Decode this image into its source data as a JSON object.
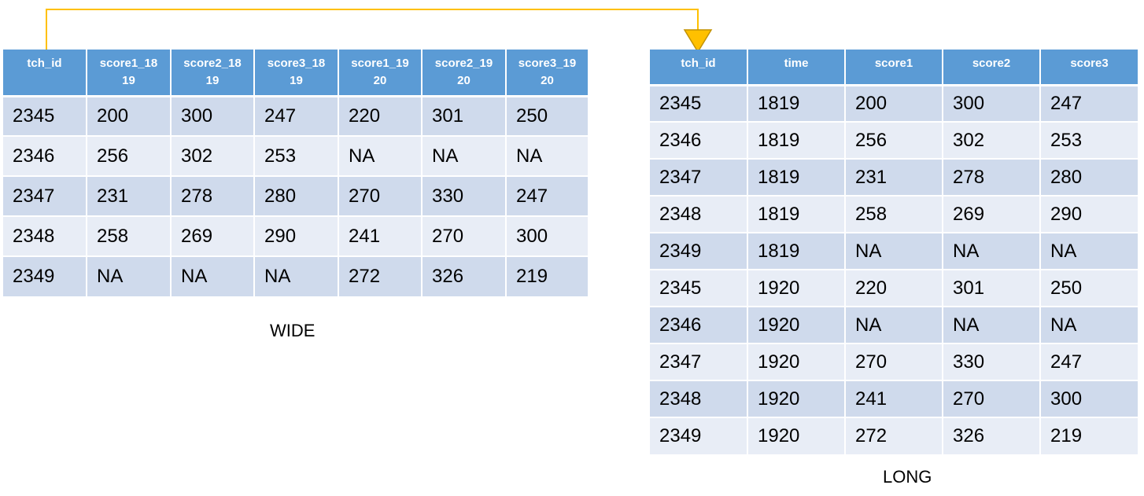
{
  "wide": {
    "caption": "WIDE",
    "headers": [
      [
        "tch_id"
      ],
      [
        "score1_18",
        "19"
      ],
      [
        "score2_18",
        "19"
      ],
      [
        "score3_18",
        "19"
      ],
      [
        "score1_19",
        "20"
      ],
      [
        "score2_19",
        "20"
      ],
      [
        "score3_19",
        "20"
      ]
    ],
    "rows": [
      [
        "2345",
        "200",
        "300",
        "247",
        "220",
        "301",
        "250"
      ],
      [
        "2346",
        "256",
        "302",
        "253",
        "NA",
        "NA",
        "NA"
      ],
      [
        "2347",
        "231",
        "278",
        "280",
        "270",
        "330",
        "247"
      ],
      [
        "2348",
        "258",
        "269",
        "290",
        "241",
        "270",
        "300"
      ],
      [
        "2349",
        "NA",
        "NA",
        "NA",
        "272",
        "326",
        "219"
      ]
    ]
  },
  "long": {
    "caption": "LONG",
    "headers": [
      "tch_id",
      "time",
      "score1",
      "score2",
      "score3"
    ],
    "rows": [
      [
        "2345",
        "1819",
        "200",
        "300",
        "247"
      ],
      [
        "2346",
        "1819",
        "256",
        "302",
        "253"
      ],
      [
        "2347",
        "1819",
        "231",
        "278",
        "280"
      ],
      [
        "2348",
        "1819",
        "258",
        "269",
        "290"
      ],
      [
        "2349",
        "1819",
        "NA",
        "NA",
        "NA"
      ],
      [
        "2345",
        "1920",
        "220",
        "301",
        "250"
      ],
      [
        "2346",
        "1920",
        "NA",
        "NA",
        "NA"
      ],
      [
        "2347",
        "1920",
        "270",
        "330",
        "247"
      ],
      [
        "2348",
        "1920",
        "241",
        "270",
        "300"
      ],
      [
        "2349",
        "1920",
        "272",
        "326",
        "219"
      ]
    ]
  },
  "colors": {
    "header": "#5b9bd5",
    "row_dark": "#cfdaec",
    "row_light": "#e8edf6",
    "connector": "#ffc000",
    "arrowhead": "#ffc000",
    "arrowhead_stroke": "#c39200"
  },
  "icons": {
    "connector": "elbow-connector-arrow",
    "arrowhead": "triangle-down-icon"
  }
}
